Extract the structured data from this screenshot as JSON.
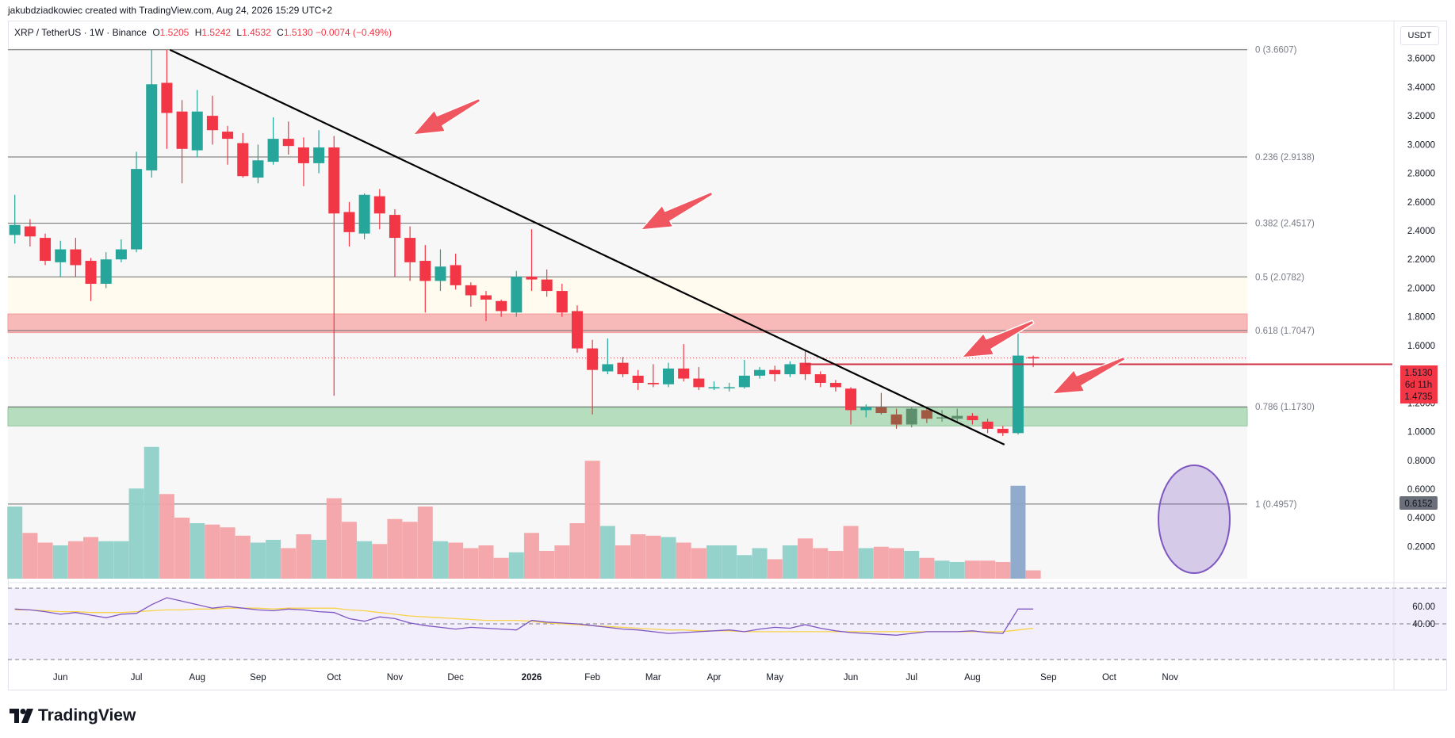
{
  "attribution": "jakubdziadkowiec created with TradingView.com, Aug 24, 2026 15:29 UTC+2",
  "legend": {
    "symbol": "XRP / TetherUS · 1W · Binance",
    "open_label": "O",
    "open": "1.5205",
    "high_label": "H",
    "high": "1.5242",
    "low_label": "L",
    "low": "1.4532",
    "close_label": "C",
    "close": "1.5130",
    "change": "−0.0074 (−0.49%)"
  },
  "currency": "USDT",
  "brand": "TradingView",
  "colors": {
    "up": "#26a69a",
    "down": "#f23645",
    "up_vol": "#8fd0c8",
    "down_vol": "#f4a3a6",
    "trend": "#000000",
    "arrow": "#f0565f",
    "rsi": "#7e57c2",
    "rsi_ma": "#f8d34a",
    "circle": "#7e57c2"
  },
  "chart_data": {
    "type": "candlestick",
    "timeframe": "1W",
    "price_axis": {
      "min": 0.1,
      "max": 3.7,
      "ticks": [
        "3.6000",
        "3.4000",
        "3.2000",
        "3.0000",
        "2.8000",
        "2.6000",
        "2.4000",
        "2.2000",
        "2.0000",
        "1.8000",
        "1.6000",
        "1.2000",
        "1.0000",
        "0.8000",
        "0.6000",
        "0.4000",
        "0.2000"
      ]
    },
    "x_axis_labels": [
      {
        "label": "Jun",
        "bar": 3
      },
      {
        "label": "Jul",
        "bar": 8
      },
      {
        "label": "Aug",
        "bar": 12
      },
      {
        "label": "Sep",
        "bar": 16
      },
      {
        "label": "Oct",
        "bar": 21
      },
      {
        "label": "Nov",
        "bar": 25
      },
      {
        "label": "Dec",
        "bar": 29
      },
      {
        "label": "2026",
        "bar": 34,
        "bold": true
      },
      {
        "label": "Feb",
        "bar": 38
      },
      {
        "label": "Mar",
        "bar": 42
      },
      {
        "label": "Apr",
        "bar": 46
      },
      {
        "label": "May",
        "bar": 50
      },
      {
        "label": "Jun",
        "bar": 55
      },
      {
        "label": "Jul",
        "bar": 59
      },
      {
        "label": "Aug",
        "bar": 63
      },
      {
        "label": "Sep",
        "bar": 68
      },
      {
        "label": "Oct",
        "bar": 72
      },
      {
        "label": "Nov",
        "bar": 76
      }
    ],
    "candles": [
      [
        2.37,
        2.44,
        2.65,
        2.31
      ],
      [
        2.43,
        2.36,
        2.48,
        2.29
      ],
      [
        2.35,
        2.19,
        2.38,
        2.16
      ],
      [
        2.18,
        2.27,
        2.33,
        2.08
      ],
      [
        2.27,
        2.16,
        2.35,
        2.08
      ],
      [
        2.19,
        2.03,
        2.21,
        1.91
      ],
      [
        2.03,
        2.2,
        2.25,
        2.0
      ],
      [
        2.2,
        2.27,
        2.34,
        2.18
      ],
      [
        2.27,
        2.83,
        2.95,
        2.25
      ],
      [
        2.82,
        3.42,
        3.66,
        2.77
      ],
      [
        3.43,
        3.22,
        3.66,
        2.97
      ],
      [
        3.23,
        2.97,
        3.31,
        2.73
      ],
      [
        2.96,
        3.23,
        3.38,
        2.91
      ],
      [
        3.2,
        3.1,
        3.34,
        3.0
      ],
      [
        3.09,
        3.04,
        3.13,
        2.86
      ],
      [
        3.01,
        2.78,
        3.08,
        2.77
      ],
      [
        2.77,
        2.89,
        3.0,
        2.73
      ],
      [
        2.88,
        3.04,
        3.19,
        2.86
      ],
      [
        3.04,
        2.99,
        3.16,
        2.93
      ],
      [
        2.98,
        2.87,
        3.05,
        2.71
      ],
      [
        2.87,
        2.98,
        3.1,
        2.8
      ],
      [
        2.98,
        2.52,
        3.06,
        1.25
      ],
      [
        2.53,
        2.39,
        2.6,
        2.29
      ],
      [
        2.38,
        2.65,
        2.66,
        2.34
      ],
      [
        2.64,
        2.52,
        2.69,
        2.41
      ],
      [
        2.51,
        2.35,
        2.55,
        2.08
      ],
      [
        2.35,
        2.18,
        2.43,
        2.05
      ],
      [
        2.19,
        2.05,
        2.3,
        1.83
      ],
      [
        2.05,
        2.15,
        2.27,
        1.98
      ],
      [
        2.16,
        2.02,
        2.24,
        1.99
      ],
      [
        2.02,
        1.95,
        2.04,
        1.87
      ],
      [
        1.95,
        1.92,
        1.98,
        1.77
      ],
      [
        1.91,
        1.84,
        1.92,
        1.8
      ],
      [
        1.83,
        2.08,
        2.12,
        1.8
      ],
      [
        2.08,
        2.06,
        2.41,
        1.98
      ],
      [
        2.06,
        1.98,
        2.13,
        1.94
      ],
      [
        1.98,
        1.83,
        2.03,
        1.8
      ],
      [
        1.84,
        1.58,
        1.88,
        1.55
      ],
      [
        1.58,
        1.43,
        1.64,
        1.12
      ],
      [
        1.42,
        1.47,
        1.65,
        1.4
      ],
      [
        1.48,
        1.4,
        1.52,
        1.38
      ],
      [
        1.39,
        1.34,
        1.43,
        1.29
      ],
      [
        1.34,
        1.33,
        1.47,
        1.31
      ],
      [
        1.33,
        1.44,
        1.48,
        1.31
      ],
      [
        1.44,
        1.37,
        1.61,
        1.35
      ],
      [
        1.37,
        1.31,
        1.45,
        1.29
      ],
      [
        1.31,
        1.31,
        1.35,
        1.29
      ],
      [
        1.31,
        1.31,
        1.34,
        1.28
      ],
      [
        1.31,
        1.39,
        1.5,
        1.3
      ],
      [
        1.39,
        1.43,
        1.45,
        1.37
      ],
      [
        1.43,
        1.4,
        1.46,
        1.35
      ],
      [
        1.4,
        1.47,
        1.49,
        1.38
      ],
      [
        1.48,
        1.4,
        1.56,
        1.36
      ],
      [
        1.4,
        1.34,
        1.42,
        1.31
      ],
      [
        1.34,
        1.31,
        1.36,
        1.28
      ],
      [
        1.3,
        1.15,
        1.31,
        1.05
      ],
      [
        1.15,
        1.17,
        1.19,
        1.1
      ],
      [
        1.17,
        1.13,
        1.27,
        1.12
      ],
      [
        1.12,
        1.05,
        1.16,
        1.02
      ],
      [
        1.05,
        1.16,
        1.17,
        1.03
      ],
      [
        1.15,
        1.09,
        1.17,
        1.06
      ],
      [
        1.1,
        1.1,
        1.15,
        1.07
      ],
      [
        1.09,
        1.11,
        1.16,
        1.06
      ],
      [
        1.11,
        1.08,
        1.13,
        1.05
      ],
      [
        1.07,
        1.02,
        1.09,
        0.99
      ],
      [
        1.02,
        0.99,
        1.04,
        0.97
      ],
      [
        0.99,
        1.53,
        1.7,
        0.98
      ],
      [
        1.52,
        1.51,
        1.53,
        1.45
      ]
    ],
    "volume_heights": [
      0.52,
      0.33,
      0.26,
      0.24,
      0.27,
      0.3,
      0.27,
      0.27,
      0.65,
      0.95,
      0.61,
      0.44,
      0.4,
      0.39,
      0.37,
      0.31,
      0.26,
      0.28,
      0.22,
      0.32,
      0.28,
      0.58,
      0.41,
      0.27,
      0.25,
      0.43,
      0.41,
      0.52,
      0.27,
      0.26,
      0.22,
      0.24,
      0.15,
      0.19,
      0.33,
      0.2,
      0.24,
      0.4,
      0.85,
      0.38,
      0.24,
      0.32,
      0.31,
      0.3,
      0.26,
      0.22,
      0.24,
      0.24,
      0.17,
      0.22,
      0.14,
      0.24,
      0.29,
      0.22,
      0.2,
      0.38,
      0.22,
      0.23,
      0.22,
      0.2,
      0.15,
      0.13,
      0.12,
      0.13,
      0.13,
      0.12,
      0.67,
      0.06
    ],
    "volume_axis_label": "0.6152",
    "fib_levels": [
      {
        "label": "0 (3.6607)",
        "price": 3.6607
      },
      {
        "label": "0.236 (2.9138)",
        "price": 2.9138
      },
      {
        "label": "0.382 (2.4517)",
        "price": 2.4517
      },
      {
        "label": "0.5 (2.0782)",
        "price": 2.0782
      },
      {
        "label": "0.618 (1.7047)",
        "price": 1.7047
      },
      {
        "label": "0.786 (1.1730)",
        "price": 1.173
      },
      {
        "label": "1 (0.4957)",
        "price": 0.4957
      }
    ],
    "zones": [
      {
        "kind": "resistance",
        "from": 1.69,
        "to": 1.82,
        "color": "#f8b9b9"
      },
      {
        "kind": "support",
        "from": 1.04,
        "to": 1.17,
        "color": "#b7ddbf"
      }
    ],
    "trendline": {
      "from": {
        "bar": 10,
        "price": 3.66
      },
      "to": {
        "bar": 65,
        "price": 0.91
      }
    },
    "horizontal_line": {
      "price": 1.47,
      "from_bar": 52
    },
    "price_badges": [
      {
        "label": "1.5130",
        "price": 1.513
      },
      {
        "label": "6d 11h",
        "price": 1.47
      },
      {
        "label": "1.4735",
        "price": 1.4735
      }
    ],
    "rsi": {
      "ticks": [
        "60.00",
        "40.00"
      ],
      "values": [
        57,
        56,
        54,
        51,
        53,
        50,
        47,
        51,
        52,
        62,
        70,
        66,
        62,
        58,
        60,
        58,
        56,
        55,
        57,
        56,
        54,
        53,
        46,
        43,
        48,
        46,
        41,
        38,
        36,
        34,
        36,
        35,
        34,
        33,
        44,
        42,
        41,
        40,
        38,
        36,
        34,
        33,
        31,
        29,
        30,
        31,
        32,
        33,
        31,
        34,
        36,
        35,
        39,
        35,
        32,
        30,
        29,
        28,
        27,
        29,
        31,
        31,
        31,
        32,
        30,
        29,
        57,
        57
      ],
      "ma": [
        56,
        56,
        55,
        54,
        54,
        53,
        53,
        53,
        54,
        55,
        56,
        56,
        57,
        57,
        58,
        58,
        58,
        57,
        58,
        58,
        58,
        58,
        56,
        55,
        53,
        51,
        49,
        48,
        47,
        46,
        45,
        44,
        44,
        44,
        43,
        41,
        40,
        39,
        38,
        37,
        36,
        35,
        34,
        33,
        33,
        32,
        32,
        32,
        31,
        31,
        31,
        31,
        31,
        31,
        31,
        31,
        31,
        31,
        31,
        31,
        31,
        31,
        31,
        31,
        31,
        31,
        33,
        35
      ]
    }
  }
}
